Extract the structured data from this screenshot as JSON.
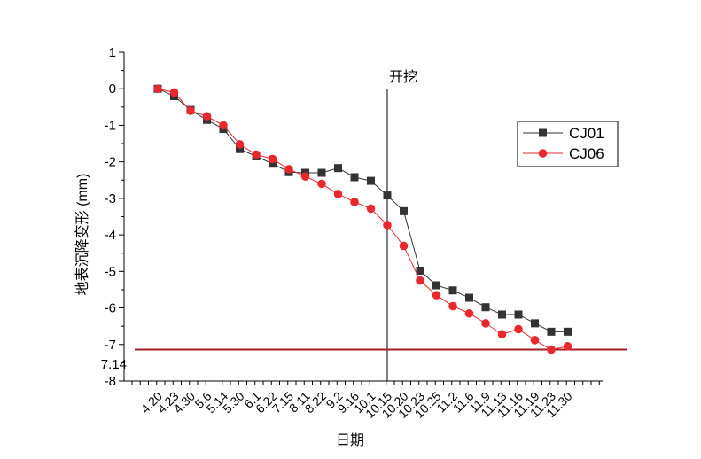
{
  "chart_data": {
    "type": "line",
    "title": "",
    "xlabel": "日期",
    "ylabel": "地表沉降变形 (mm)",
    "ylim": [
      -8,
      1
    ],
    "yticks": [
      1,
      0,
      -1,
      -2,
      -3,
      -4,
      -5,
      -6,
      -7,
      -8
    ],
    "categories": [
      "4.20",
      "4.23",
      "4.30",
      "5.6",
      "5.14",
      "5.30",
      "6.1",
      "6.22",
      "7.15",
      "8.11",
      "8.22",
      "9.2",
      "9.16",
      "10.1",
      "10.15",
      "10.20",
      "10.23",
      "10.25",
      "11.2",
      "11.6",
      "11.9",
      "11.13",
      "11.16",
      "11.19",
      "11.23",
      "11.30"
    ],
    "series": [
      {
        "name": "CJ01",
        "color": "#333333",
        "marker": "square",
        "values": [
          0,
          -0.2,
          -0.58,
          -0.85,
          -1.1,
          -1.65,
          -1.85,
          -2.05,
          -2.28,
          -2.3,
          -2.3,
          -2.17,
          -2.42,
          -2.52,
          -2.92,
          -3.35,
          -4.98,
          -5.38,
          -5.52,
          -5.72,
          -5.98,
          -6.18,
          -6.18,
          -6.42,
          -6.65,
          -6.65
        ]
      },
      {
        "name": "CJ06",
        "color": "#e8282d",
        "marker": "circle",
        "values": [
          0,
          -0.1,
          -0.6,
          -0.75,
          -1.0,
          -1.52,
          -1.8,
          -1.92,
          -2.2,
          -2.4,
          -2.6,
          -2.88,
          -3.1,
          -3.28,
          -3.73,
          -4.3,
          -5.25,
          -5.65,
          -5.95,
          -6.15,
          -6.42,
          -6.72,
          -6.58,
          -6.88,
          -7.14,
          -7.05
        ]
      }
    ],
    "vline": {
      "category": "10.15",
      "label": "开挖",
      "color": "#000000"
    },
    "hline": {
      "value": -7.14,
      "label": "7.14",
      "color": "#a31d24"
    },
    "legend": {
      "position": "top-right"
    },
    "grid": false
  }
}
